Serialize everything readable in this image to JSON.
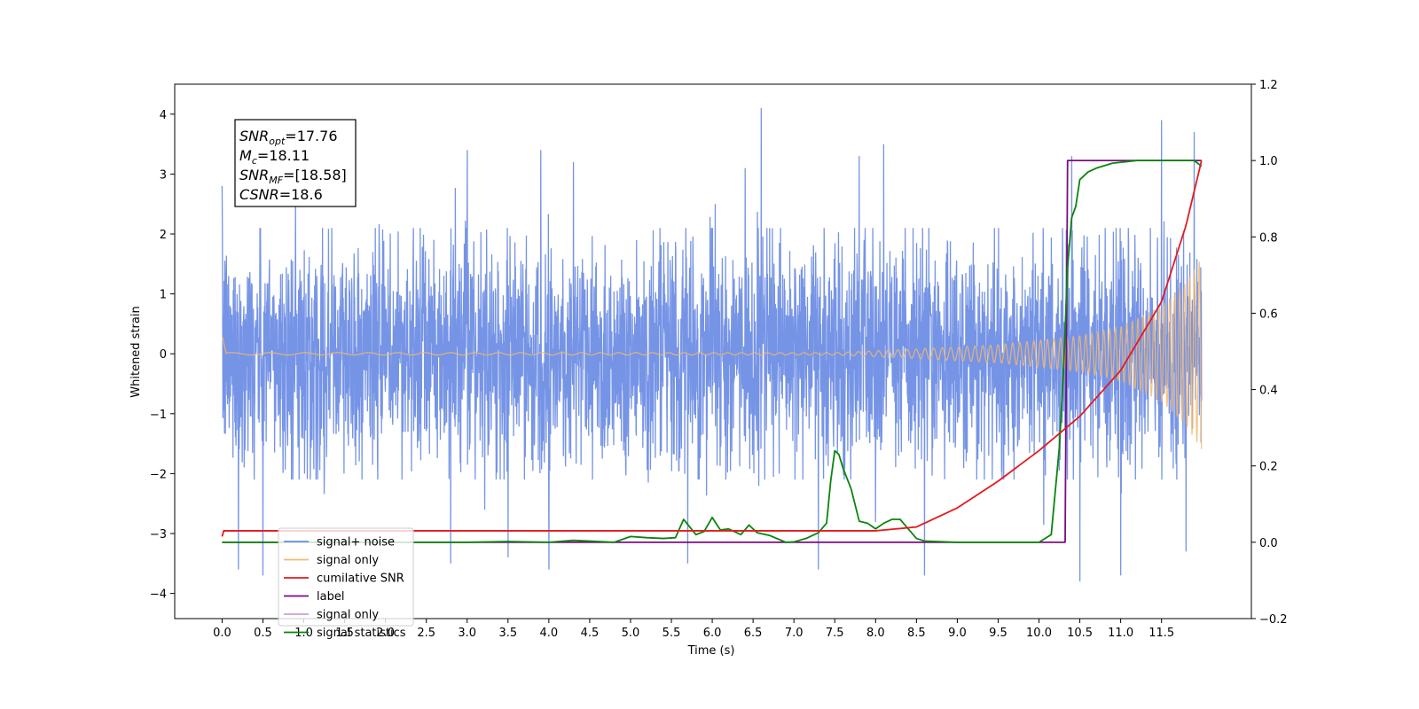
{
  "chart_data": {
    "type": "line",
    "xlabel": "Time (s)",
    "ylabel": "Whitened strain",
    "xlim": [
      -0.58,
      12.6
    ],
    "ylim": [
      -4.42,
      4.5
    ],
    "y2lim": [
      -0.2,
      1.2
    ],
    "x_ticks": [
      "0.0",
      "0.5",
      "1.0",
      "1.5",
      "2.0",
      "2.5",
      "3.0",
      "3.5",
      "4.0",
      "4.5",
      "5.0",
      "5.5",
      "6.0",
      "6.5",
      "7.0",
      "7.5",
      "8.0",
      "8.5",
      "9.0",
      "9.5",
      "10.0",
      "10.5",
      "11.0",
      "11.5"
    ],
    "y_ticks": [
      "−4",
      "−3",
      "−2",
      "−1",
      "0",
      "1",
      "2",
      "3",
      "4"
    ],
    "y2_ticks": [
      "−0.2",
      "0.0",
      "0.2",
      "0.4",
      "0.6",
      "0.8",
      "1.0",
      "1.2"
    ],
    "info_box": [
      {
        "base": "SNR",
        "sub": "opt",
        "rest": "=17.76"
      },
      {
        "base": "M",
        "sub": "c",
        "rest": "=18.11"
      },
      {
        "base": "SNR",
        "sub": "MF",
        "rest": "=[18.58]"
      },
      {
        "base": "CSNR",
        "sub": "",
        "rest": "=18.6"
      }
    ],
    "legend_position": "lower-left",
    "series": [
      {
        "name": "signal+ noise",
        "color": "#6a8be4",
        "axis": "left",
        "description": "whitened strain noise band",
        "x_range": [
          0.0,
          11.99
        ],
        "envelope": [
          -1.5,
          1.5
        ],
        "peaks_up": [
          [
            0.0,
            2.8
          ],
          [
            0.9,
            2.6
          ],
          [
            3.0,
            3.4
          ],
          [
            3.9,
            3.4
          ],
          [
            4.3,
            3.2
          ],
          [
            6.6,
            4.1
          ],
          [
            7.8,
            3.3
          ],
          [
            8.1,
            3.5
          ],
          [
            10.4,
            3.3
          ],
          [
            11.0,
            3.5
          ],
          [
            11.5,
            3.9
          ],
          [
            11.9,
            3.7
          ]
        ],
        "peaks_down": [
          [
            0.2,
            -3.6
          ],
          [
            0.5,
            -3.7
          ],
          [
            2.8,
            -3.5
          ],
          [
            3.5,
            -3.4
          ],
          [
            4.0,
            -3.6
          ],
          [
            5.7,
            -3.5
          ],
          [
            7.3,
            -3.6
          ],
          [
            8.6,
            -3.7
          ],
          [
            10.5,
            -3.8
          ],
          [
            11.0,
            -3.7
          ],
          [
            11.8,
            -3.3
          ]
        ]
      },
      {
        "name": "signal only",
        "color": "#f6b96a",
        "axis": "left",
        "description": "chirp signal growing in amplitude",
        "amplitude_points": [
          [
            0.0,
            0.02
          ],
          [
            7.5,
            0.02
          ],
          [
            8.5,
            0.08
          ],
          [
            9.5,
            0.15
          ],
          [
            10.5,
            0.3
          ],
          [
            11.0,
            0.45
          ],
          [
            11.5,
            0.8
          ],
          [
            11.8,
            1.2
          ],
          [
            11.99,
            1.6
          ]
        ]
      },
      {
        "name": "cumilative SNR",
        "color": "#e31a1c",
        "axis": "right",
        "x": [
          0.0,
          0.02,
          8.0,
          8.5,
          9.0,
          9.5,
          10.0,
          10.5,
          11.0,
          11.5,
          11.8,
          11.99
        ],
        "y": [
          0.015,
          0.03,
          0.03,
          0.04,
          0.09,
          0.16,
          0.24,
          0.33,
          0.45,
          0.63,
          0.83,
          1.0
        ]
      },
      {
        "name": "label",
        "color": "#7b0d7e",
        "axis": "right",
        "x": [
          0.0,
          10.32,
          10.35,
          11.99
        ],
        "y": [
          0.0,
          0.0,
          1.0,
          1.0
        ]
      },
      {
        "name": "signal only",
        "color": "#c9a0d9",
        "axis": "right",
        "legend_only": true,
        "x": [],
        "y": []
      },
      {
        "name": "signal statistics",
        "color": "#098509",
        "axis": "right",
        "x": [
          0.0,
          3.0,
          3.5,
          4.0,
          4.3,
          4.5,
          4.8,
          5.0,
          5.2,
          5.4,
          5.55,
          5.65,
          5.8,
          5.9,
          6.0,
          6.1,
          6.2,
          6.35,
          6.45,
          6.55,
          6.7,
          6.9,
          7.0,
          7.15,
          7.3,
          7.4,
          7.45,
          7.5,
          7.55,
          7.6,
          7.7,
          7.8,
          7.9,
          8.0,
          8.1,
          8.2,
          8.3,
          8.4,
          8.5,
          8.6,
          9.0,
          10.0,
          10.15,
          10.25,
          10.3,
          10.35,
          10.4,
          10.45,
          10.5,
          10.6,
          10.7,
          10.9,
          11.2,
          11.5,
          11.9,
          11.99
        ],
        "y": [
          0.0,
          0.0,
          0.002,
          0.0,
          0.005,
          0.003,
          0.0,
          0.015,
          0.012,
          0.01,
          0.012,
          0.06,
          0.02,
          0.028,
          0.065,
          0.032,
          0.035,
          0.02,
          0.045,
          0.025,
          0.018,
          0.0,
          0.001,
          0.01,
          0.025,
          0.05,
          0.16,
          0.24,
          0.23,
          0.195,
          0.14,
          0.055,
          0.05,
          0.035,
          0.05,
          0.06,
          0.06,
          0.035,
          0.01,
          0.003,
          0.0,
          0.0,
          0.02,
          0.25,
          0.45,
          0.72,
          0.85,
          0.88,
          0.95,
          0.97,
          0.98,
          0.993,
          1.0,
          1.0,
          1.0,
          0.985
        ]
      }
    ]
  }
}
